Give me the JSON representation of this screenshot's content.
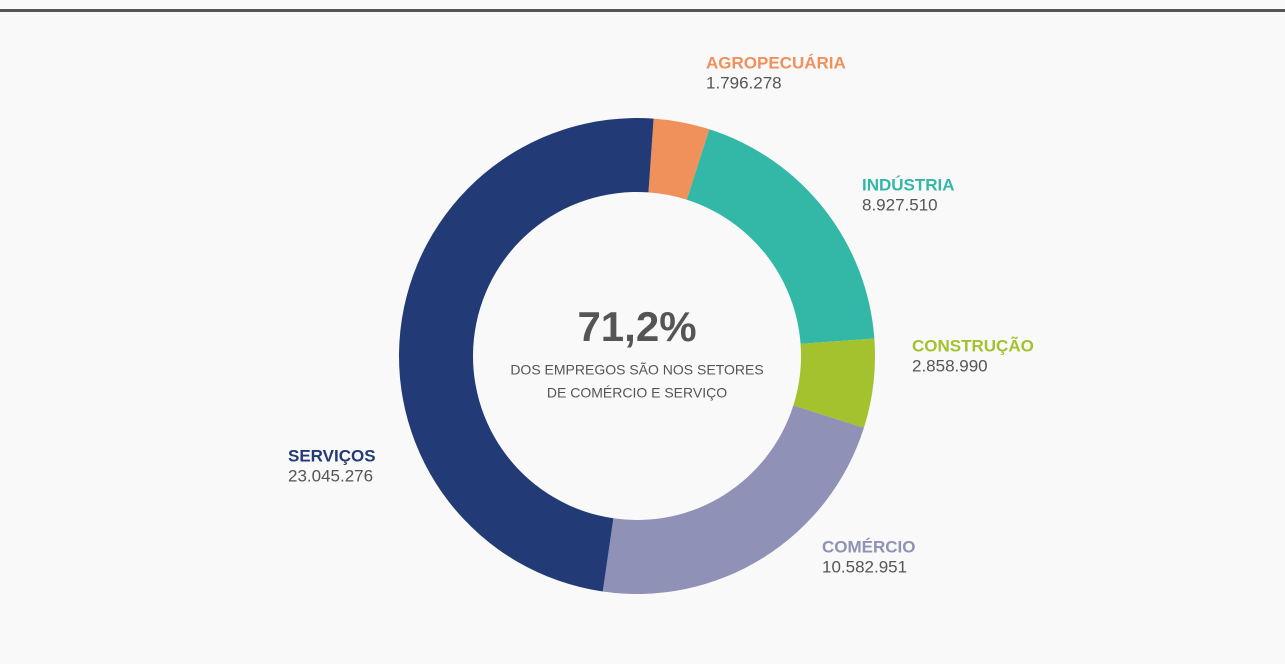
{
  "chart_data": {
    "type": "donut",
    "categories": [
      "AGROPECUÁRIA",
      "INDÚSTRIA",
      "CONSTRUÇÃO",
      "COMÉRCIO",
      "SERVIÇOS"
    ],
    "values": [
      1796278,
      8927510,
      2858990,
      10582951,
      23045276
    ],
    "value_labels": [
      "1.796.278",
      "8.927.510",
      "2.858.990",
      "10.582.951",
      "23.045.276"
    ],
    "colors": [
      "#f0905a",
      "#33b8a8",
      "#a3c22e",
      "#8f91b6",
      "#223a75"
    ],
    "annotations": {
      "center_value": "71,2%",
      "center_text": [
        "DOS EMPREGOS SÃO NOS SETORES",
        "DE COMÉRCIO E SERVIÇO"
      ]
    }
  }
}
